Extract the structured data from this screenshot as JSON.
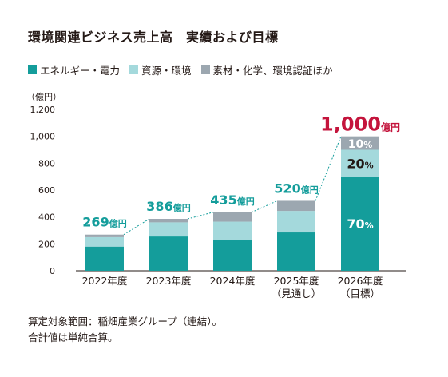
{
  "title": "環境関連ビジネス売上高　実績および目標",
  "legend": [
    {
      "label": "エネルギー・電力",
      "color": "#149D9B"
    },
    {
      "label": "資源・環境",
      "color": "#A4D9DC"
    },
    {
      "label": "素材・化学、環境認証ほか",
      "color": "#9CA7B0"
    }
  ],
  "chart_data": {
    "type": "bar",
    "stacked": true,
    "ylabel": "（億円）",
    "ylim": [
      0,
      1200
    ],
    "yticks": [
      "0",
      "200",
      "400",
      "600",
      "800",
      "1,000",
      "1,200"
    ],
    "categories": [
      {
        "line1": "2022年度",
        "line2": ""
      },
      {
        "line1": "2023年度",
        "line2": ""
      },
      {
        "line1": "2024年度",
        "line2": ""
      },
      {
        "line1": "2025年度",
        "line2": "（見通し）"
      },
      {
        "line1": "2026年度",
        "line2": "（目標）"
      }
    ],
    "series": [
      {
        "name": "エネルギー・電力",
        "values": [
          180,
          255,
          230,
          285,
          700
        ]
      },
      {
        "name": "資源・環境",
        "values": [
          70,
          105,
          135,
          160,
          200
        ]
      },
      {
        "name": "素材・化学、環境認証ほか",
        "values": [
          19,
          26,
          70,
          75,
          100
        ]
      }
    ],
    "totals": [
      {
        "num": "269",
        "unit": "億円"
      },
      {
        "num": "386",
        "unit": "億円"
      },
      {
        "num": "435",
        "unit": "億円"
      },
      {
        "num": "520",
        "unit": "億円"
      },
      {
        "num": "1,000",
        "unit": "億円"
      }
    ],
    "target_shares": [
      {
        "num": "70",
        "unit": "%"
      },
      {
        "num": "20",
        "unit": "%"
      },
      {
        "num": "10",
        "unit": "%"
      }
    ],
    "total_color": "#149D9B",
    "target_total_color": "#C4143C",
    "share_label_colors": [
      "#ffffff",
      "#231815",
      "#ffffff"
    ],
    "grid": false
  },
  "notes": [
    "算定対象範囲：稲畑産業グループ（連結）。",
    "合計値は単純合算。"
  ]
}
